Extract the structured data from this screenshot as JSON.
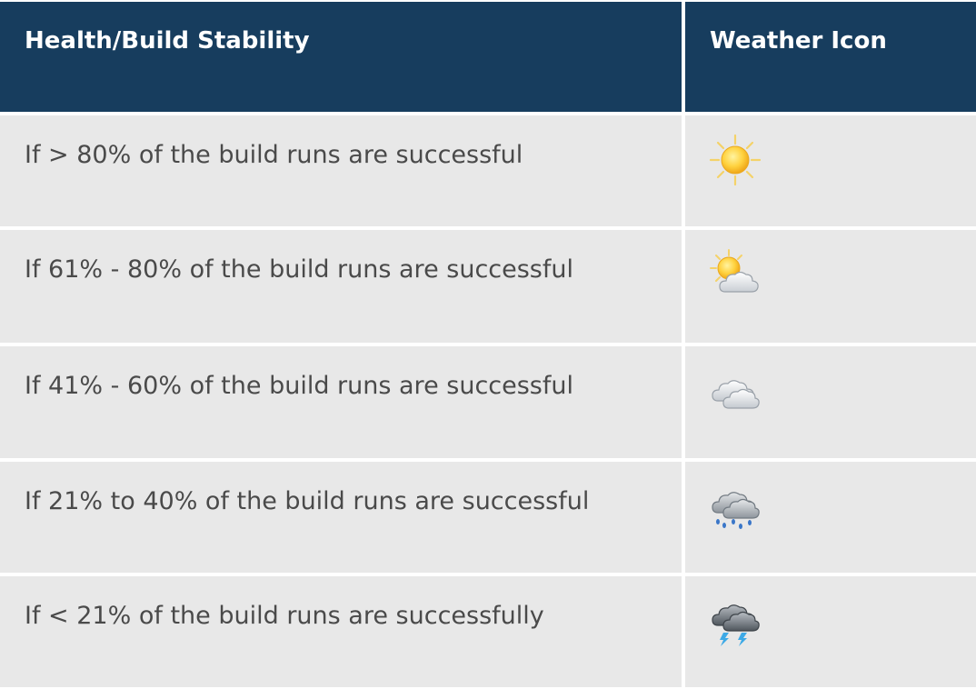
{
  "table": {
    "headers": {
      "stability": "Health/Build Stability",
      "icon": "Weather Icon"
    },
    "rows": [
      {
        "condition": "If > 80% of the build runs are successful",
        "icon": "sunny-icon"
      },
      {
        "condition": "If 61% - 80% of the build runs are successful",
        "icon": "partly-cloudy-icon"
      },
      {
        "condition": "If 41% - 60% of the build runs are successful",
        "icon": "cloudy-icon"
      },
      {
        "condition": "If 21% to 40% of the build runs are successful",
        "icon": "rain-icon"
      },
      {
        "condition": "If < 21% of the build runs are successfully",
        "icon": "thunderstorm-icon"
      }
    ]
  },
  "colors": {
    "header_bg": "#173d5e",
    "header_text": "#ffffff",
    "row_bg": "#e8e8e8",
    "row_text": "#4a4a4a"
  }
}
